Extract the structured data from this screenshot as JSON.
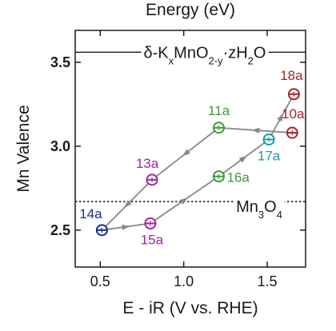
{
  "chart_data": {
    "type": "scatter",
    "top_label": "Energy (eV)",
    "xlabel": "E - iR (V vs. RHE)",
    "ylabel": "Mn Valence",
    "xlim": [
      0.35,
      1.73
    ],
    "ylim": [
      2.28,
      3.69
    ],
    "xticks": [
      0.5,
      1.0,
      1.5
    ],
    "xtick_labels": [
      "0.5",
      "1.0",
      "1.5"
    ],
    "yticks": [
      2.5,
      3.0,
      3.5
    ],
    "ytick_labels": [
      "2.5",
      "3.0",
      "3.5"
    ],
    "reference_lines": [
      {
        "name": "δ-KxMnO2-y·zH2O",
        "y": 3.56,
        "style": "solid",
        "label_parts": [
          {
            "t": "δ-K",
            "sub": false
          },
          {
            "t": "x",
            "sub": true
          },
          {
            "t": "MnO",
            "sub": false
          },
          {
            "t": "2-y",
            "sub": true
          },
          {
            "t": "·zH",
            "sub": false
          },
          {
            "t": "2",
            "sub": true
          },
          {
            "t": "O",
            "sub": false
          }
        ]
      },
      {
        "name": "Mn3O4",
        "y": 2.67,
        "style": "dotted",
        "label_parts": [
          {
            "t": "Mn",
            "sub": false
          },
          {
            "t": "3",
            "sub": true
          },
          {
            "t": "O",
            "sub": false
          },
          {
            "t": "4",
            "sub": true
          }
        ]
      }
    ],
    "points": [
      {
        "label": "10a",
        "x": 1.65,
        "y": 3.08,
        "color": "#a02828"
      },
      {
        "label": "11a",
        "x": 1.21,
        "y": 3.11,
        "color": "#3a9a3a"
      },
      {
        "label": "13a",
        "x": 0.81,
        "y": 2.8,
        "color": "#9a2a9a"
      },
      {
        "label": "14a",
        "x": 0.51,
        "y": 2.5,
        "color": "#1a2a9a"
      },
      {
        "label": "15a",
        "x": 0.8,
        "y": 2.54,
        "color": "#9a2a9a"
      },
      {
        "label": "16a",
        "x": 1.21,
        "y": 2.82,
        "color": "#3a9a3a"
      },
      {
        "label": "17a",
        "x": 1.51,
        "y": 3.04,
        "color": "#1a9aa8"
      },
      {
        "label": "18a",
        "x": 1.66,
        "y": 3.31,
        "color": "#a02828"
      }
    ],
    "path_order": [
      "10a",
      "11a",
      "13a",
      "14a",
      "15a",
      "16a",
      "17a",
      "18a"
    ],
    "path_color": "#888888"
  }
}
